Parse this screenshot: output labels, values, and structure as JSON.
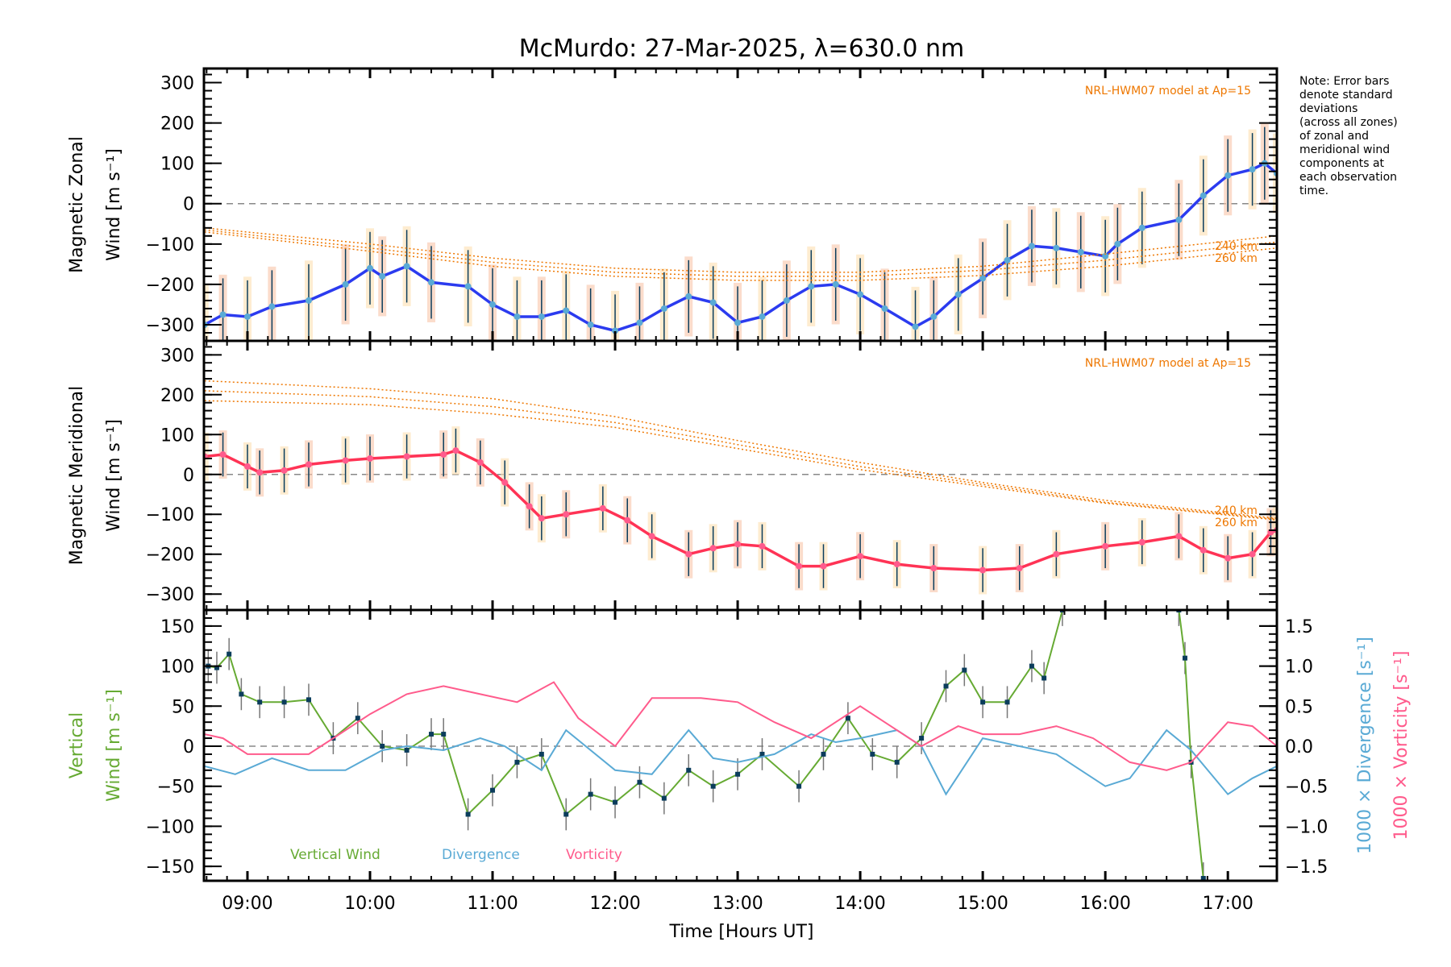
{
  "chart_data": [
    {
      "type": "line",
      "panel": "zonal",
      "title": "McMurdo: 27-Mar-2025, λ=630.0 nm",
      "ylabel_line1": "Magnetic Zonal",
      "ylabel_line2": "Wind [m s⁻¹]",
      "ylim": [
        -340,
        335
      ],
      "yticks": [
        -300,
        -200,
        -100,
        0,
        100,
        200,
        300
      ],
      "xlim": [
        8.645,
        17.4
      ],
      "model_label": "NRL-HWM07 model at Ap=15",
      "model_alt_labels": [
        "240 km",
        "260 km"
      ],
      "series": [
        {
          "name": "Zonal wind (mean)",
          "color": "#2b3bef",
          "x": [
            8.65,
            8.8,
            9.0,
            9.2,
            9.5,
            9.8,
            10.0,
            10.1,
            10.3,
            10.5,
            10.8,
            11.0,
            11.2,
            11.4,
            11.6,
            11.8,
            12.0,
            12.2,
            12.4,
            12.6,
            12.8,
            13.0,
            13.2,
            13.4,
            13.6,
            13.8,
            14.0,
            14.2,
            14.45,
            14.6,
            14.8,
            15.0,
            15.2,
            15.4,
            15.6,
            15.8,
            16.0,
            16.1,
            16.3,
            16.6,
            16.8,
            17.0,
            17.2,
            17.3,
            17.4
          ],
          "y": [
            -300,
            -275,
            -280,
            -255,
            -240,
            -200,
            -160,
            -180,
            -155,
            -195,
            -205,
            -250,
            -280,
            -280,
            -265,
            -300,
            -315,
            -295,
            -260,
            -230,
            -245,
            -295,
            -280,
            -240,
            -205,
            -200,
            -225,
            -260,
            -305,
            -280,
            -225,
            -185,
            -140,
            -105,
            -110,
            -120,
            -130,
            -100,
            -60,
            -40,
            20,
            70,
            85,
            100,
            75
          ],
          "error": 90
        },
        {
          "name": "HWM07 upper",
          "color": "#ee7700",
          "style": "dotted",
          "x": [
            8.65,
            10.0,
            11.0,
            12.0,
            13.0,
            14.0,
            15.0,
            16.0,
            17.4
          ],
          "y": [
            -60,
            -100,
            -135,
            -160,
            -170,
            -170,
            -155,
            -125,
            -80
          ]
        },
        {
          "name": "HWM07 240 km",
          "color": "#ee7700",
          "style": "dotted",
          "x": [
            8.65,
            10.0,
            11.0,
            12.0,
            13.0,
            14.0,
            15.0,
            16.0,
            17.4
          ],
          "y": [
            -65,
            -110,
            -145,
            -170,
            -180,
            -180,
            -165,
            -140,
            -95
          ]
        },
        {
          "name": "HWM07 260 km",
          "color": "#ee7700",
          "style": "dotted",
          "x": [
            8.65,
            10.0,
            11.0,
            12.0,
            13.0,
            14.0,
            15.0,
            16.0,
            17.4
          ],
          "y": [
            -70,
            -118,
            -155,
            -180,
            -190,
            -190,
            -178,
            -155,
            -110
          ]
        }
      ]
    },
    {
      "type": "line",
      "panel": "meridional",
      "ylabel_line1": "Magnetic Meridional",
      "ylabel_line2": "Wind [m s⁻¹]",
      "ylim": [
        -340,
        335
      ],
      "yticks": [
        -300,
        -200,
        -100,
        0,
        100,
        200,
        300
      ],
      "xlim": [
        8.645,
        17.4
      ],
      "model_label": "NRL-HWM07 model at Ap=15",
      "model_alt_labels": [
        "240 km",
        "260 km"
      ],
      "series": [
        {
          "name": "Meridional wind (mean)",
          "color": "#ff3355",
          "x": [
            8.65,
            8.8,
            9.0,
            9.1,
            9.3,
            9.5,
            9.8,
            10.0,
            10.3,
            10.6,
            10.7,
            10.9,
            11.1,
            11.3,
            11.4,
            11.6,
            11.9,
            12.1,
            12.3,
            12.6,
            12.8,
            13.0,
            13.2,
            13.5,
            13.7,
            14.0,
            14.3,
            14.6,
            15.0,
            15.3,
            15.6,
            16.0,
            16.3,
            16.6,
            16.8,
            17.0,
            17.2,
            17.35,
            17.4
          ],
          "y": [
            45,
            50,
            20,
            5,
            10,
            25,
            35,
            40,
            45,
            50,
            60,
            30,
            -20,
            -80,
            -110,
            -100,
            -85,
            -115,
            -155,
            -200,
            -185,
            -175,
            -180,
            -230,
            -230,
            -205,
            -225,
            -235,
            -240,
            -235,
            -200,
            -180,
            -170,
            -155,
            -190,
            -210,
            -200,
            -145,
            -140
          ],
          "error": 55
        },
        {
          "name": "HWM07 upper",
          "color": "#ee7700",
          "style": "dotted",
          "x": [
            8.65,
            10.0,
            11.0,
            12.0,
            13.0,
            14.0,
            15.0,
            16.0,
            17.4
          ],
          "y": [
            235,
            215,
            190,
            145,
            85,
            30,
            -20,
            -65,
            -110
          ]
        },
        {
          "name": "HWM07 240 km",
          "color": "#ee7700",
          "style": "dotted",
          "x": [
            8.65,
            10.0,
            11.0,
            12.0,
            13.0,
            14.0,
            15.0,
            16.0,
            17.4
          ],
          "y": [
            210,
            195,
            170,
            130,
            75,
            20,
            -25,
            -70,
            -112
          ]
        },
        {
          "name": "HWM07 260 km",
          "color": "#ee7700",
          "style": "dotted",
          "x": [
            8.65,
            10.0,
            11.0,
            12.0,
            13.0,
            14.0,
            15.0,
            16.0,
            17.4
          ],
          "y": [
            185,
            175,
            152,
            118,
            65,
            12,
            -30,
            -72,
            -114
          ]
        }
      ]
    },
    {
      "type": "line",
      "panel": "vertical",
      "xlabel": "Time [Hours UT]",
      "xticks": [
        "09:00",
        "10:00",
        "11:00",
        "12:00",
        "13:00",
        "14:00",
        "15:00",
        "16:00",
        "17:00"
      ],
      "xtick_values": [
        9,
        10,
        11,
        12,
        13,
        14,
        15,
        16,
        17
      ],
      "xlim": [
        8.645,
        17.4
      ],
      "ylabel_line1": "Vertical",
      "ylabel_line2": "Wind [m s⁻¹]",
      "ylim": [
        -168,
        170
      ],
      "yticks": [
        -150,
        -100,
        -50,
        0,
        50,
        100,
        150
      ],
      "y2label_div": "1000 × Divergence [s⁻¹]",
      "y2label_vort": "1000 × Vorticity [s⁻¹]",
      "y2lim": [
        -1.5,
        1.5
      ],
      "y2ticks": [
        "-1.5",
        "-1.0",
        "-0.5",
        "0.0",
        "0.5",
        "1.0",
        "1.5"
      ],
      "legend": [
        "Vertical Wind",
        "Divergence",
        "Vorticity"
      ],
      "series": [
        {
          "name": "Vertical Wind",
          "color": "#66aa33",
          "axis": "left",
          "x": [
            8.68,
            8.75,
            8.85,
            8.95,
            9.1,
            9.3,
            9.5,
            9.7,
            9.9,
            10.1,
            10.3,
            10.5,
            10.6,
            10.8,
            11.0,
            11.2,
            11.4,
            11.6,
            11.8,
            12.0,
            12.2,
            12.4,
            12.6,
            12.8,
            13.0,
            13.2,
            13.5,
            13.7,
            13.9,
            14.1,
            14.3,
            14.5,
            14.7,
            14.85,
            15.0,
            15.2,
            15.4,
            15.5,
            15.65,
            16.6,
            16.65,
            16.7,
            16.8
          ],
          "y": [
            100,
            98,
            115,
            65,
            55,
            55,
            58,
            10,
            35,
            0,
            -5,
            15,
            15,
            -85,
            -55,
            -20,
            -10,
            -85,
            -60,
            -70,
            -45,
            -65,
            -30,
            -50,
            -35,
            -10,
            -50,
            -10,
            35,
            -10,
            -20,
            10,
            75,
            95,
            55,
            55,
            100,
            85,
            170,
            170,
            110,
            -20,
            -165
          ],
          "error": 20
        },
        {
          "name": "Divergence",
          "color": "#5aaad5",
          "axis": "right",
          "x": [
            8.65,
            8.9,
            9.2,
            9.5,
            9.8,
            10.1,
            10.3,
            10.6,
            10.9,
            11.1,
            11.4,
            11.6,
            12.0,
            12.3,
            12.6,
            12.8,
            13.0,
            13.3,
            13.6,
            13.8,
            14.0,
            14.3,
            14.5,
            14.7,
            15.0,
            15.3,
            15.6,
            16.0,
            16.2,
            16.5,
            16.7,
            17.0,
            17.2,
            17.4
          ],
          "y": [
            -0.25,
            -0.35,
            -0.15,
            -0.3,
            -0.3,
            -0.05,
            0.0,
            -0.05,
            0.1,
            0.0,
            -0.3,
            0.2,
            -0.3,
            -0.35,
            0.2,
            -0.15,
            -0.2,
            -0.1,
            0.15,
            0.05,
            0.1,
            0.2,
            0.0,
            -0.6,
            0.1,
            0.0,
            -0.1,
            -0.5,
            -0.4,
            0.2,
            -0.05,
            -0.6,
            -0.4,
            -0.25
          ]
        },
        {
          "name": "Vorticity",
          "color": "#ff5b8c",
          "axis": "right",
          "x": [
            8.65,
            8.8,
            9.0,
            9.5,
            9.7,
            10.0,
            10.3,
            10.6,
            10.9,
            11.2,
            11.5,
            11.7,
            12.0,
            12.3,
            12.7,
            13.0,
            13.3,
            13.6,
            13.9,
            14.0,
            14.2,
            14.5,
            14.8,
            15.0,
            15.3,
            15.6,
            15.9,
            16.2,
            16.5,
            16.7,
            17.0,
            17.2,
            17.4
          ],
          "y": [
            0.15,
            0.1,
            -0.1,
            -0.1,
            0.1,
            0.4,
            0.65,
            0.75,
            0.65,
            0.55,
            0.8,
            0.35,
            0.0,
            0.6,
            0.6,
            0.55,
            0.3,
            0.1,
            0.4,
            0.5,
            0.3,
            0.0,
            0.25,
            0.15,
            0.15,
            0.25,
            0.1,
            -0.2,
            -0.3,
            -0.2,
            0.3,
            0.25,
            0.0
          ]
        }
      ]
    }
  ],
  "note": [
    "Note: Error bars",
    "denote standard",
    "deviations",
    "(across all zones)",
    "of zonal and",
    "meridional wind",
    "components at",
    "each observation",
    "time."
  ]
}
